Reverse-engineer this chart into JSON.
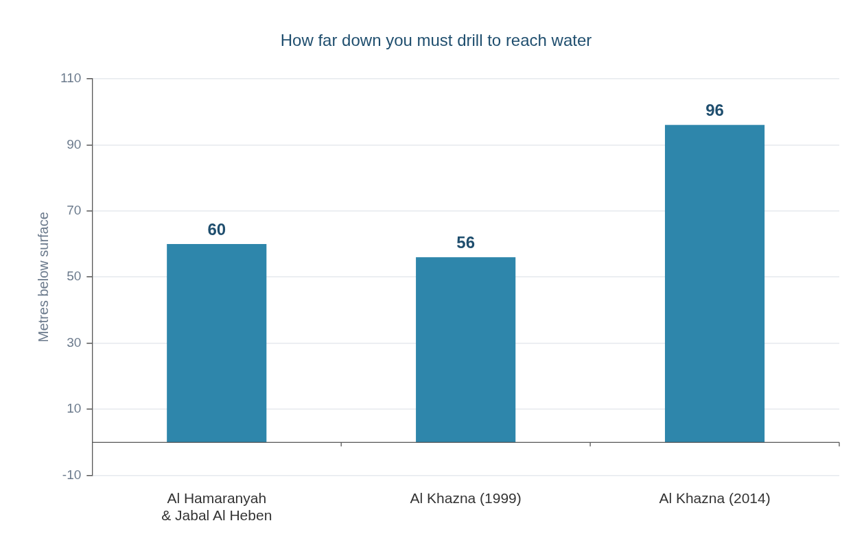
{
  "chart_data": {
    "type": "bar",
    "title": "How far down you must drill to reach water",
    "ylabel": "Metres below surface",
    "categories": [
      "Al Hamaranyah\n& Jabal Al Heben",
      "Al Khazna (1999)",
      "Al Khazna (2014)"
    ],
    "values": [
      60,
      56,
      96
    ],
    "color": "#2e86ab",
    "ylim": [
      -10,
      110
    ],
    "yticks": [
      -10,
      10,
      30,
      50,
      70,
      90,
      110
    ],
    "grid": "y",
    "data_labels": true
  }
}
